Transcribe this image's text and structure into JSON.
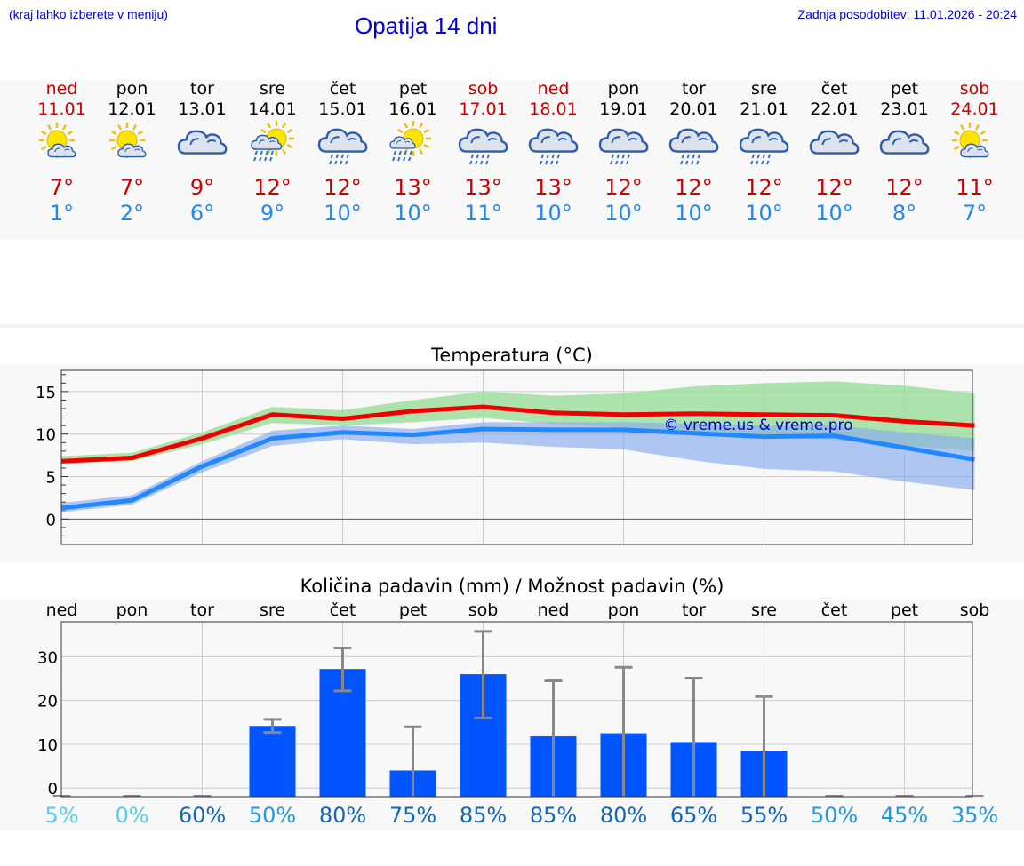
{
  "header": {
    "hint": "(kraj lahko izberete v meniju)",
    "title": "Opatija 14 dni",
    "updated": "Zadnja posodobitev: 11.01.2026 - 20:24"
  },
  "days": [
    {
      "name": "ned",
      "date": "11.01",
      "weekend": true,
      "icon": "sun-cloud-icon",
      "max": "7°",
      "min": "1°",
      "prob": "5%",
      "prob_color": "#55ccee"
    },
    {
      "name": "pon",
      "date": "12.01",
      "weekend": false,
      "icon": "sun-cloud-icon",
      "max": "7°",
      "min": "2°",
      "prob": "0%",
      "prob_color": "#55ccee"
    },
    {
      "name": "tor",
      "date": "13.01",
      "weekend": false,
      "icon": "cloudy-icon",
      "max": "9°",
      "min": "6°",
      "prob": "60%",
      "prob_color": "#1166bb"
    },
    {
      "name": "sre",
      "date": "14.01",
      "weekend": false,
      "icon": "sun-cloud-rain-icon",
      "max": "12°",
      "min": "9°",
      "prob": "50%",
      "prob_color": "#2299dd"
    },
    {
      "name": "čet",
      "date": "15.01",
      "weekend": false,
      "icon": "cloud-rain-icon",
      "max": "12°",
      "min": "10°",
      "prob": "80%",
      "prob_color": "#1166bb"
    },
    {
      "name": "pet",
      "date": "16.01",
      "weekend": false,
      "icon": "sun-rain-icon",
      "max": "13°",
      "min": "10°",
      "prob": "75%",
      "prob_color": "#1166bb"
    },
    {
      "name": "sob",
      "date": "17.01",
      "weekend": true,
      "icon": "cloud-rain-icon",
      "max": "13°",
      "min": "11°",
      "prob": "85%",
      "prob_color": "#1166bb"
    },
    {
      "name": "ned",
      "date": "18.01",
      "weekend": true,
      "icon": "cloud-rain-icon",
      "max": "13°",
      "min": "10°",
      "prob": "85%",
      "prob_color": "#1166bb"
    },
    {
      "name": "pon",
      "date": "19.01",
      "weekend": false,
      "icon": "cloud-rain-icon",
      "max": "12°",
      "min": "10°",
      "prob": "80%",
      "prob_color": "#1166bb"
    },
    {
      "name": "tor",
      "date": "20.01",
      "weekend": false,
      "icon": "cloud-rain-icon",
      "max": "12°",
      "min": "10°",
      "prob": "65%",
      "prob_color": "#1166bb"
    },
    {
      "name": "sre",
      "date": "21.01",
      "weekend": false,
      "icon": "cloud-rain-icon",
      "max": "12°",
      "min": "10°",
      "prob": "55%",
      "prob_color": "#1166bb"
    },
    {
      "name": "čet",
      "date": "22.01",
      "weekend": false,
      "icon": "cloudy-icon",
      "max": "12°",
      "min": "10°",
      "prob": "50%",
      "prob_color": "#2299dd"
    },
    {
      "name": "pet",
      "date": "23.01",
      "weekend": false,
      "icon": "cloudy-icon",
      "max": "12°",
      "min": "8°",
      "prob": "45%",
      "prob_color": "#2299dd"
    },
    {
      "name": "sob",
      "date": "24.01",
      "weekend": true,
      "icon": "sun-cloud-icon",
      "max": "11°",
      "min": "7°",
      "prob": "35%",
      "prob_color": "#2299dd"
    }
  ],
  "colors": {
    "max_line": "#ee0000",
    "min_line": "#2288ff",
    "max_band": "#99dd99",
    "min_band": "#88aaee",
    "bar": "#0055ff",
    "error_bar": "#888888",
    "grid": "#cccccc",
    "watermark": "#0000cc"
  },
  "chart_data": [
    {
      "type": "line",
      "title": "Temperatura (°C)",
      "watermark": "© vreme.us & vreme.pro",
      "x": [
        0,
        1,
        2,
        3,
        4,
        5,
        6,
        7,
        8,
        9,
        10,
        11,
        12,
        13
      ],
      "ylim": [
        -3,
        17.5
      ],
      "yticks": [
        0,
        5,
        10,
        15
      ],
      "ytick_labels": [
        "0",
        "5",
        "10",
        "15"
      ],
      "series": [
        {
          "name": "max",
          "values": [
            6.8,
            7.2,
            9.5,
            12.3,
            11.8,
            12.7,
            13.2,
            12.5,
            12.3,
            12.4,
            12.3,
            12.2,
            11.5,
            11.0
          ],
          "band_low": [
            6.5,
            6.8,
            8.8,
            11.3,
            11.0,
            11.4,
            11.9,
            11.2,
            10.8,
            10.2,
            9.7,
            9.3,
            8.6,
            8.0
          ],
          "band_high": [
            7.4,
            7.8,
            10.2,
            13.2,
            12.8,
            14.0,
            15.0,
            14.5,
            14.8,
            15.6,
            16.0,
            16.2,
            15.7,
            14.8
          ]
        },
        {
          "name": "min",
          "values": [
            1.3,
            2.2,
            6.2,
            9.5,
            10.2,
            9.9,
            10.6,
            10.5,
            10.5,
            10.1,
            9.7,
            9.8,
            8.4,
            7.0
          ],
          "band_low": [
            0.8,
            1.7,
            5.5,
            8.6,
            9.4,
            8.8,
            9.0,
            8.5,
            8.2,
            6.9,
            5.9,
            5.6,
            4.4,
            3.4
          ],
          "band_high": [
            1.9,
            2.8,
            6.8,
            10.4,
            11.0,
            10.6,
            11.4,
            11.4,
            11.4,
            11.2,
            11.0,
            11.0,
            10.2,
            9.5
          ]
        }
      ]
    },
    {
      "type": "bar",
      "title": "Količina padavin (mm) / Možnost padavin (%)",
      "categories": [
        "ned",
        "pon",
        "tor",
        "sre",
        "čet",
        "pet",
        "sob",
        "ned",
        "pon",
        "tor",
        "sre",
        "čet",
        "pet",
        "sob"
      ],
      "values": [
        0,
        0,
        0,
        14.2,
        27.2,
        4.0,
        26.0,
        11.8,
        12.5,
        10.5,
        8.5,
        0,
        0,
        0
      ],
      "error_low": [
        0,
        0,
        0,
        12.7,
        22.2,
        0,
        16.0,
        0,
        0,
        0,
        0,
        0,
        0,
        0
      ],
      "error_high": [
        0,
        0,
        0,
        15.7,
        32.0,
        14.0,
        35.8,
        24.5,
        27.6,
        25.1,
        20.9,
        0,
        0,
        0
      ],
      "ylim": [
        -2,
        38
      ],
      "yticks": [
        0,
        10,
        20,
        30
      ],
      "ytick_labels": [
        "0",
        "10",
        "20",
        "30"
      ],
      "probabilities": [
        "5%",
        "0%",
        "60%",
        "50%",
        "80%",
        "75%",
        "85%",
        "85%",
        "80%",
        "65%",
        "55%",
        "50%",
        "45%",
        "35%"
      ]
    }
  ]
}
